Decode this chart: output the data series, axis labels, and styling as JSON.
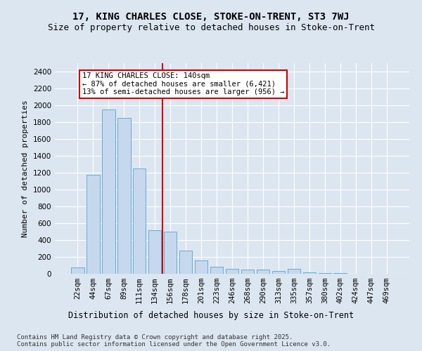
{
  "title1": "17, KING CHARLES CLOSE, STOKE-ON-TRENT, ST3 7WJ",
  "title2": "Size of property relative to detached houses in Stoke-on-Trent",
  "xlabel": "Distribution of detached houses by size in Stoke-on-Trent",
  "ylabel": "Number of detached properties",
  "categories": [
    "22sqm",
    "44sqm",
    "67sqm",
    "89sqm",
    "111sqm",
    "134sqm",
    "156sqm",
    "178sqm",
    "201sqm",
    "223sqm",
    "246sqm",
    "268sqm",
    "290sqm",
    "313sqm",
    "335sqm",
    "357sqm",
    "380sqm",
    "402sqm",
    "424sqm",
    "447sqm",
    "469sqm"
  ],
  "values": [
    75,
    1175,
    1950,
    1850,
    1250,
    520,
    500,
    275,
    160,
    80,
    55,
    50,
    50,
    30,
    55,
    15,
    8,
    5,
    3,
    3,
    3
  ],
  "bar_color": "#c5d8ed",
  "bar_edge_color": "#6aaad4",
  "bar_width": 0.85,
  "red_line_x": 5.5,
  "annotation_text": "17 KING CHARLES CLOSE: 140sqm\n← 87% of detached houses are smaller (6,421)\n13% of semi-detached houses are larger (956) →",
  "annotation_box_color": "white",
  "annotation_box_edge_color": "#cc0000",
  "ylim": [
    0,
    2500
  ],
  "yticks": [
    0,
    200,
    400,
    600,
    800,
    1000,
    1200,
    1400,
    1600,
    1800,
    2000,
    2200,
    2400
  ],
  "background_color": "#dce6f0",
  "grid_color": "#ffffff",
  "footer_line1": "Contains HM Land Registry data © Crown copyright and database right 2025.",
  "footer_line2": "Contains public sector information licensed under the Open Government Licence v3.0.",
  "title1_fontsize": 10,
  "title2_fontsize": 9,
  "xlabel_fontsize": 8.5,
  "ylabel_fontsize": 8,
  "tick_fontsize": 7.5,
  "annotation_fontsize": 7.5,
  "footer_fontsize": 6.5
}
